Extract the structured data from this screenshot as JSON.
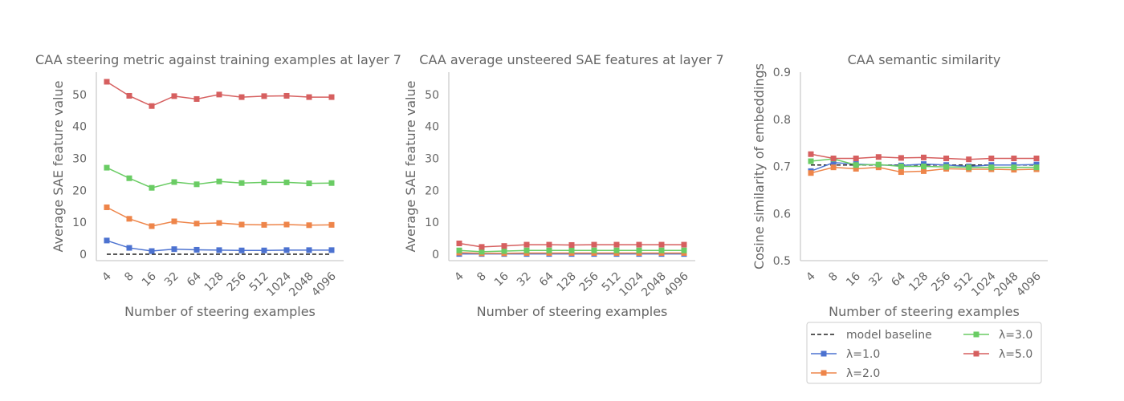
{
  "colors": {
    "text": "#666666",
    "axis": "#cccccc",
    "baseline": "#222222",
    "lambda1": "#4c72d0",
    "lambda2": "#ee854a",
    "lambda3": "#6acc64",
    "lambda5": "#d65f5f"
  },
  "chart_data": [
    {
      "type": "line",
      "title": "CAA steering metric against training examples at layer 7",
      "xlabel": "Number of steering examples",
      "ylabel": "Average SAE feature value",
      "categories": [
        "4",
        "8",
        "16",
        "32",
        "64",
        "128",
        "256",
        "512",
        "1024",
        "2048",
        "4096"
      ],
      "ylim": [
        -2,
        57
      ],
      "yticks": [
        0,
        10,
        20,
        30,
        40,
        50
      ],
      "baseline": {
        "name": "model baseline",
        "value": 0
      },
      "series": [
        {
          "name": "λ=1.0",
          "color_key": "lambda1",
          "values": [
            4.3,
            2.0,
            1.0,
            1.6,
            1.4,
            1.3,
            1.2,
            1.2,
            1.3,
            1.3,
            1.3
          ]
        },
        {
          "name": "λ=2.0",
          "color_key": "lambda2",
          "values": [
            14.7,
            11.1,
            8.8,
            10.3,
            9.6,
            9.8,
            9.3,
            9.2,
            9.3,
            9.1,
            9.2
          ]
        },
        {
          "name": "λ=3.0",
          "color_key": "lambda3",
          "values": [
            27.1,
            23.8,
            20.8,
            22.6,
            21.9,
            22.8,
            22.3,
            22.5,
            22.5,
            22.2,
            22.3
          ]
        },
        {
          "name": "λ=5.0",
          "color_key": "lambda5",
          "values": [
            54.0,
            49.6,
            46.4,
            49.5,
            48.6,
            50.0,
            49.2,
            49.5,
            49.6,
            49.2,
            49.2
          ]
        }
      ]
    },
    {
      "type": "line",
      "title": "CAA average unsteered SAE features at layer 7",
      "xlabel": "Number of steering examples",
      "ylabel": "Average SAE feature value",
      "categories": [
        "4",
        "8",
        "16",
        "32",
        "64",
        "128",
        "256",
        "512",
        "1024",
        "2048",
        "4096"
      ],
      "ylim": [
        -2,
        57
      ],
      "yticks": [
        0,
        10,
        20,
        30,
        40,
        50
      ],
      "series": [
        {
          "name": "λ=1.0",
          "color_key": "lambda1",
          "values": [
            0.1,
            0.1,
            0.1,
            0.1,
            0.1,
            0.1,
            0.1,
            0.1,
            0.1,
            0.1,
            0.1
          ]
        },
        {
          "name": "λ=2.0",
          "color_key": "lambda2",
          "values": [
            0.5,
            0.3,
            0.3,
            0.4,
            0.4,
            0.4,
            0.4,
            0.4,
            0.4,
            0.4,
            0.4
          ]
        },
        {
          "name": "λ=3.0",
          "color_key": "lambda3",
          "values": [
            1.2,
            0.8,
            1.0,
            1.2,
            1.2,
            1.2,
            1.2,
            1.2,
            1.2,
            1.2,
            1.2
          ]
        },
        {
          "name": "λ=5.0",
          "color_key": "lambda5",
          "values": [
            3.4,
            2.3,
            2.6,
            3.0,
            3.0,
            2.9,
            3.0,
            3.0,
            3.0,
            3.0,
            3.0
          ]
        }
      ]
    },
    {
      "type": "line",
      "title": "CAA semantic similarity",
      "xlabel": "Number of steering examples",
      "ylabel": "Cosine similarity of embeddings",
      "categories": [
        "4",
        "8",
        "16",
        "32",
        "64",
        "128",
        "256",
        "512",
        "1024",
        "2048",
        "4096"
      ],
      "ylim": [
        0.5,
        0.9
      ],
      "yticks": [
        0.5,
        0.6,
        0.7,
        0.8,
        0.9
      ],
      "baseline": {
        "name": "model baseline",
        "value": 0.703
      },
      "series": [
        {
          "name": "λ=1.0",
          "color_key": "lambda1",
          "values": [
            0.69,
            0.708,
            0.705,
            0.703,
            0.702,
            0.705,
            0.703,
            0.7,
            0.703,
            0.703,
            0.704
          ]
        },
        {
          "name": "λ=2.0",
          "color_key": "lambda2",
          "values": [
            0.686,
            0.698,
            0.695,
            0.698,
            0.688,
            0.69,
            0.695,
            0.694,
            0.694,
            0.693,
            0.694
          ]
        },
        {
          "name": "λ=3.0",
          "color_key": "lambda3",
          "values": [
            0.711,
            0.716,
            0.703,
            0.704,
            0.7,
            0.7,
            0.699,
            0.698,
            0.698,
            0.698,
            0.698
          ]
        },
        {
          "name": "λ=5.0",
          "color_key": "lambda5",
          "values": [
            0.726,
            0.717,
            0.717,
            0.72,
            0.718,
            0.719,
            0.717,
            0.715,
            0.717,
            0.717,
            0.717
          ]
        }
      ]
    }
  ],
  "legend": {
    "placement": "below third chart",
    "items": [
      {
        "label": "model baseline",
        "color_key": "baseline",
        "style": "dashed"
      },
      {
        "label": "λ=1.0",
        "color_key": "lambda1",
        "style": "line-square"
      },
      {
        "label": "λ=2.0",
        "color_key": "lambda2",
        "style": "line-square"
      },
      {
        "label": "λ=3.0",
        "color_key": "lambda3",
        "style": "line-square"
      },
      {
        "label": "λ=5.0",
        "color_key": "lambda5",
        "style": "line-square"
      }
    ]
  }
}
